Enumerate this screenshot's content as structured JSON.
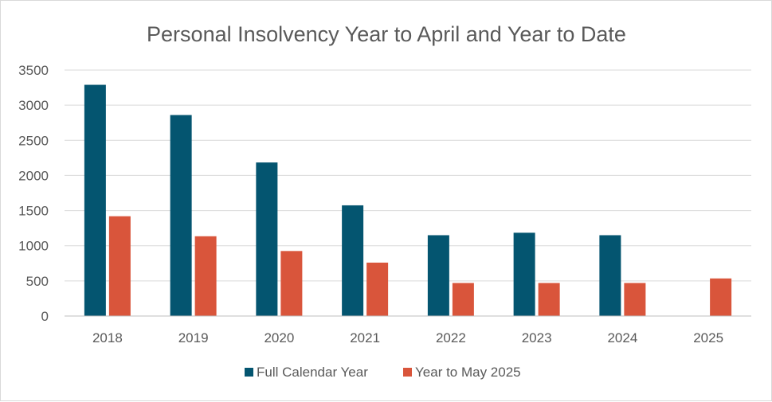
{
  "chart_data": {
    "type": "bar",
    "title": "Personal Insolvency Year to April and Year to Date",
    "xlabel": "",
    "ylabel": "",
    "categories": [
      "2018",
      "2019",
      "2020",
      "2021",
      "2022",
      "2023",
      "2024",
      "2025"
    ],
    "series": [
      {
        "name": "Full Calendar Year",
        "color": "#045570",
        "values": [
          3290,
          2860,
          2185,
          1575,
          1150,
          1185,
          1150,
          null
        ]
      },
      {
        "name": "Year to May 2025",
        "color": "#D9553B",
        "values": [
          1420,
          1135,
          925,
          760,
          470,
          470,
          470,
          535
        ]
      }
    ],
    "ylim": [
      0,
      3500
    ],
    "yticks": [
      0,
      500,
      1000,
      1500,
      2000,
      2500,
      3000,
      3500
    ],
    "grid": true,
    "legend": "bottom"
  }
}
